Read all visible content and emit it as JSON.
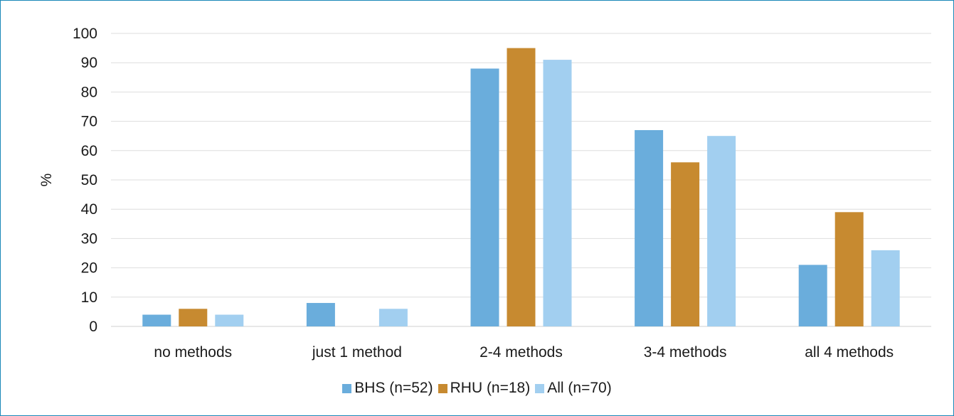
{
  "chart_data": {
    "type": "bar",
    "categories": [
      "no methods",
      "just 1 method",
      "2-4 methods",
      "3-4 methods",
      "all 4 methods"
    ],
    "series": [
      {
        "name": "BHS (n=52)",
        "color": "#6aaddc",
        "values": [
          4,
          8,
          88,
          67,
          21
        ]
      },
      {
        "name": "RHU (n=18)",
        "color": "#c78a30",
        "values": [
          6,
          0,
          95,
          56,
          39
        ]
      },
      {
        "name": "All (n=70)",
        "color": "#a2cff0",
        "values": [
          4,
          6,
          91,
          65,
          26
        ]
      }
    ],
    "ylabel": "%",
    "ylim": [
      0,
      100
    ],
    "yticks": [
      0,
      10,
      20,
      30,
      40,
      50,
      60,
      70,
      80,
      90,
      100
    ],
    "grid": true,
    "legend_position": "bottom"
  }
}
